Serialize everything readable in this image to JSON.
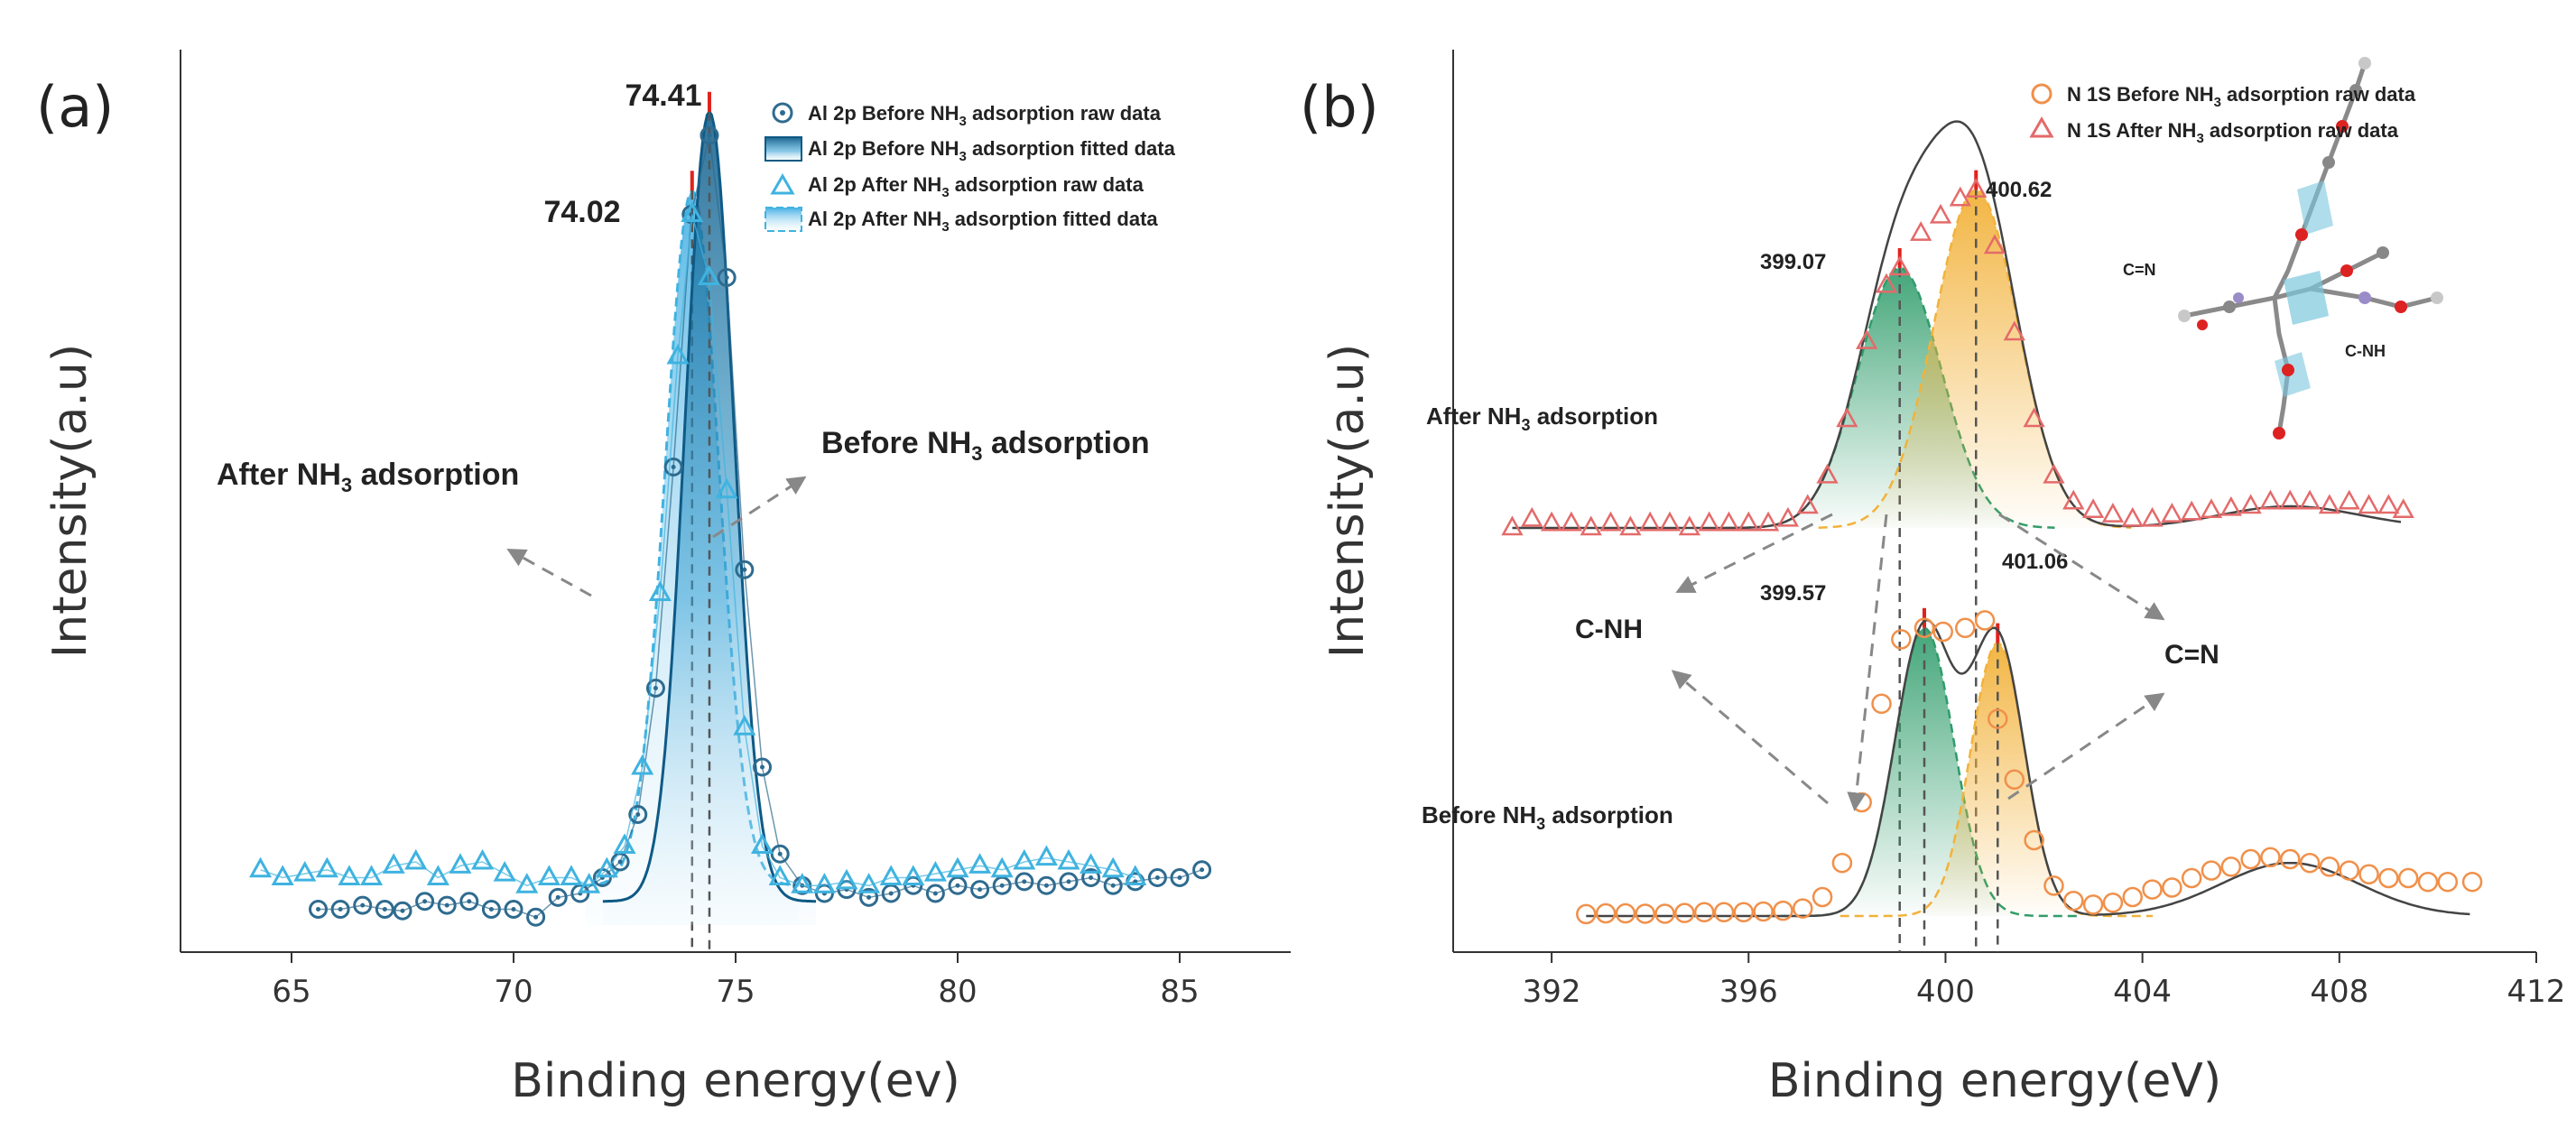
{
  "chart_data": [
    {
      "panel": "(a)",
      "type": "line",
      "xlabel": "Binding energy(ev)",
      "ylabel": "Intensity(a.u)",
      "xlim": [
        62.5,
        87.5
      ],
      "xticks": [
        65,
        70,
        75,
        80,
        85
      ],
      "ylim": [
        0,
        1
      ],
      "series": [
        {
          "name": "Al 2p Before NH3 adsorption raw data",
          "legend": [
            "Al 2p Before NH",
            "3",
            " adsorption raw data"
          ],
          "marker": "circle",
          "color": "#2e6b8f",
          "x": [
            65.6,
            66.1,
            66.6,
            67.1,
            67.5,
            68.0,
            68.5,
            69.0,
            69.5,
            70.0,
            70.5,
            71.0,
            71.5,
            72.0,
            72.4,
            72.8,
            73.2,
            73.6,
            74.0,
            74.41,
            74.8,
            75.2,
            75.6,
            76.0,
            76.5,
            77.0,
            77.5,
            78.0,
            78.5,
            79.0,
            79.5,
            80.0,
            80.5,
            81.0,
            81.5,
            82.0,
            82.5,
            83.0,
            83.5,
            84.0,
            84.5,
            85.0,
            85.5
          ],
          "y": [
            0.02,
            0.02,
            0.025,
            0.02,
            0.018,
            0.03,
            0.025,
            0.03,
            0.02,
            0.02,
            0.01,
            0.035,
            0.04,
            0.06,
            0.08,
            0.14,
            0.3,
            0.58,
            0.9,
            1.0,
            0.82,
            0.45,
            0.2,
            0.09,
            0.05,
            0.04,
            0.045,
            0.035,
            0.04,
            0.05,
            0.04,
            0.05,
            0.045,
            0.05,
            0.055,
            0.05,
            0.055,
            0.06,
            0.05,
            0.055,
            0.06,
            0.06,
            0.07
          ]
        },
        {
          "name": "Al 2p After NH3 adsorption raw data",
          "legend": [
            "Al 2p After NH",
            "3",
            " adsorption raw data"
          ],
          "marker": "triangle",
          "color": "#3fb3e0",
          "x": [
            64.3,
            64.8,
            65.3,
            65.8,
            66.3,
            66.8,
            67.3,
            67.8,
            68.3,
            68.8,
            69.3,
            69.8,
            70.3,
            70.8,
            71.3,
            71.7,
            72.1,
            72.5,
            72.9,
            73.3,
            73.7,
            74.02,
            74.4,
            74.8,
            75.2,
            75.6,
            76.0,
            76.5,
            77.0,
            77.5,
            78.0,
            78.5,
            79.0,
            79.5,
            80.0,
            80.5,
            81.0,
            81.5,
            82.0,
            82.5,
            83.0,
            83.5,
            84.0
          ],
          "y": [
            0.07,
            0.06,
            0.065,
            0.07,
            0.06,
            0.06,
            0.075,
            0.08,
            0.06,
            0.075,
            0.08,
            0.065,
            0.05,
            0.06,
            0.06,
            0.05,
            0.07,
            0.1,
            0.2,
            0.42,
            0.72,
            0.9,
            0.82,
            0.55,
            0.25,
            0.1,
            0.06,
            0.05,
            0.05,
            0.055,
            0.05,
            0.06,
            0.06,
            0.065,
            0.07,
            0.075,
            0.07,
            0.08,
            0.085,
            0.08,
            0.075,
            0.07,
            0.06
          ]
        }
      ],
      "fitted_series": [
        {
          "name": "Al 2p Before NH3 adsorption fitted data",
          "legend": [
            "Al 2p Before NH",
            "3",
            " adsorption fitted data"
          ],
          "center": 74.41,
          "height": 1.0,
          "sigma": 0.55,
          "baseline": 0.03
        },
        {
          "name": "Al 2p After NH3 adsorption fitted data",
          "legend": [
            "Al 2p After NH",
            "3",
            " adsorption fitted data"
          ],
          "center": 74.02,
          "height": 0.88,
          "sigma": 0.6,
          "baseline": 0.05
        }
      ],
      "annotations": {
        "peak_before": "74.41",
        "peak_after": "74.02",
        "after_label": [
          "After NH",
          "3",
          " adsorption"
        ],
        "before_label": [
          "Before NH",
          "3",
          " adsorption"
        ]
      }
    },
    {
      "panel": "(b)",
      "type": "line",
      "xlabel": "Binding energy(eV)",
      "ylabel": "Intensity(a.u)",
      "xlim": [
        390,
        412
      ],
      "xticks": [
        392,
        396,
        400,
        404,
        408,
        412
      ],
      "ylim": [
        0,
        1
      ],
      "series": [
        {
          "name": "N 1S Before NH3 adsorption raw data",
          "legend": [
            "N 1S Before NH",
            "3",
            " adsorption raw data"
          ],
          "marker": "circle",
          "color": "#f0904a",
          "x": [
            392.7,
            393.1,
            393.5,
            393.9,
            394.3,
            394.7,
            395.1,
            395.5,
            395.9,
            396.3,
            396.7,
            397.1,
            397.5,
            397.9,
            398.3,
            398.7,
            399.1,
            399.57,
            399.95,
            400.4,
            400.8,
            401.06,
            401.4,
            401.8,
            402.2,
            402.6,
            403.0,
            403.4,
            403.8,
            404.2,
            404.6,
            405.0,
            405.4,
            405.8,
            406.2,
            406.6,
            407.0,
            407.4,
            407.8,
            408.2,
            408.6,
            409.0,
            409.4,
            409.8,
            410.2,
            410.7
          ],
          "y": [
            0.005,
            0.007,
            0.007,
            0.006,
            0.006,
            0.008,
            0.01,
            0.01,
            0.01,
            0.012,
            0.014,
            0.02,
            0.05,
            0.14,
            0.3,
            0.56,
            0.73,
            0.76,
            0.75,
            0.76,
            0.78,
            0.52,
            0.36,
            0.2,
            0.08,
            0.04,
            0.03,
            0.035,
            0.05,
            0.07,
            0.075,
            0.1,
            0.12,
            0.13,
            0.15,
            0.155,
            0.15,
            0.14,
            0.13,
            0.12,
            0.11,
            0.1,
            0.1,
            0.09,
            0.09,
            0.09
          ]
        },
        {
          "name": "N 1S After NH3 adsorption raw data",
          "legend": [
            "N 1S After NH",
            "3",
            " adsorption raw data"
          ],
          "marker": "triangle",
          "color": "#e46a6a",
          "x": [
            391.2,
            391.6,
            392.0,
            392.4,
            392.8,
            393.2,
            393.6,
            394.0,
            394.4,
            394.8,
            395.2,
            395.6,
            396.0,
            396.4,
            396.8,
            397.2,
            397.6,
            398.0,
            398.4,
            398.8,
            399.07,
            399.5,
            399.9,
            400.3,
            400.62,
            401.0,
            401.4,
            401.8,
            402.2,
            402.6,
            403.0,
            403.4,
            403.8,
            404.2,
            404.6,
            405.0,
            405.4,
            405.8,
            406.2,
            406.6,
            407.0,
            407.4,
            407.8,
            408.2,
            408.6,
            409.0,
            409.3
          ],
          "y": [
            0.0,
            0.02,
            0.01,
            0.01,
            0.0,
            0.01,
            0.0,
            0.01,
            0.01,
            0.0,
            0.01,
            0.01,
            0.01,
            0.01,
            0.02,
            0.05,
            0.12,
            0.25,
            0.43,
            0.56,
            0.6,
            0.68,
            0.72,
            0.76,
            0.78,
            0.65,
            0.45,
            0.25,
            0.12,
            0.06,
            0.04,
            0.03,
            0.02,
            0.02,
            0.03,
            0.035,
            0.04,
            0.045,
            0.05,
            0.06,
            0.06,
            0.06,
            0.05,
            0.06,
            0.05,
            0.05,
            0.04
          ]
        }
      ],
      "fitted_series": [
        {
          "name": "After: C-NH component",
          "center": 399.07,
          "height": 0.6,
          "sigma": 0.85,
          "color": "#2e9c6a"
        },
        {
          "name": "After: C=N component",
          "center": 400.62,
          "height": 0.78,
          "sigma": 0.85,
          "color": "#f2b23a"
        },
        {
          "name": "Before: C-NH component",
          "center": 399.57,
          "height": 0.76,
          "sigma": 0.6,
          "color": "#2e9c6a"
        },
        {
          "name": "Before: C=N component",
          "center": 401.06,
          "height": 0.72,
          "sigma": 0.55,
          "color": "#f2b23a"
        }
      ],
      "annotations": {
        "peak_after_1": "399.07",
        "peak_after_2": "400.62",
        "peak_before_1": "399.57",
        "peak_before_2": "401.06",
        "after_label": [
          "After NH",
          "3",
          " adsorption"
        ],
        "before_label": [
          "Before NH",
          "3",
          " adsorption"
        ],
        "cnh": "C-NH",
        "cn": "C=N"
      }
    }
  ],
  "colors": {
    "before_a": "#2e6b8f",
    "after_a": "#3fb3e0",
    "before_b": "#f0904a",
    "after_b": "#e46a6a",
    "green_fill": "#2e9c6a",
    "orange_fill": "#f2b23a",
    "peak_tick": "#e0221c"
  }
}
